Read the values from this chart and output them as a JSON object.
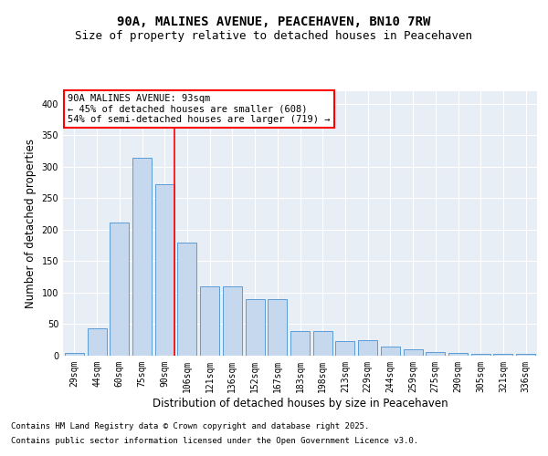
{
  "title1": "90A, MALINES AVENUE, PEACEHAVEN, BN10 7RW",
  "title2": "Size of property relative to detached houses in Peacehaven",
  "xlabel": "Distribution of detached houses by size in Peacehaven",
  "ylabel": "Number of detached properties",
  "categories": [
    "29sqm",
    "44sqm",
    "60sqm",
    "75sqm",
    "90sqm",
    "106sqm",
    "121sqm",
    "136sqm",
    "152sqm",
    "167sqm",
    "183sqm",
    "198sqm",
    "213sqm",
    "229sqm",
    "244sqm",
    "259sqm",
    "275sqm",
    "290sqm",
    "305sqm",
    "321sqm",
    "336sqm"
  ],
  "values": [
    5,
    44,
    212,
    315,
    272,
    179,
    110,
    110,
    90,
    90,
    39,
    39,
    23,
    25,
    15,
    10,
    6,
    5,
    3,
    3,
    3
  ],
  "bar_color": "#c5d8ed",
  "bar_edge_color": "#5b9bd5",
  "red_line_index": 4,
  "annotation_text": "90A MALINES AVENUE: 93sqm\n← 45% of detached houses are smaller (608)\n54% of semi-detached houses are larger (719) →",
  "annotation_box_color": "white",
  "annotation_edge_color": "red",
  "footer1": "Contains HM Land Registry data © Crown copyright and database right 2025.",
  "footer2": "Contains public sector information licensed under the Open Government Licence v3.0.",
  "ylim": [
    0,
    420
  ],
  "yticks": [
    0,
    50,
    100,
    150,
    200,
    250,
    300,
    350,
    400
  ],
  "background_color": "#e8eef5",
  "grid_color": "white",
  "title_fontsize": 10,
  "subtitle_fontsize": 9,
  "axis_label_fontsize": 8.5,
  "tick_fontsize": 7,
  "annotation_fontsize": 7.5,
  "footer_fontsize": 6.5
}
